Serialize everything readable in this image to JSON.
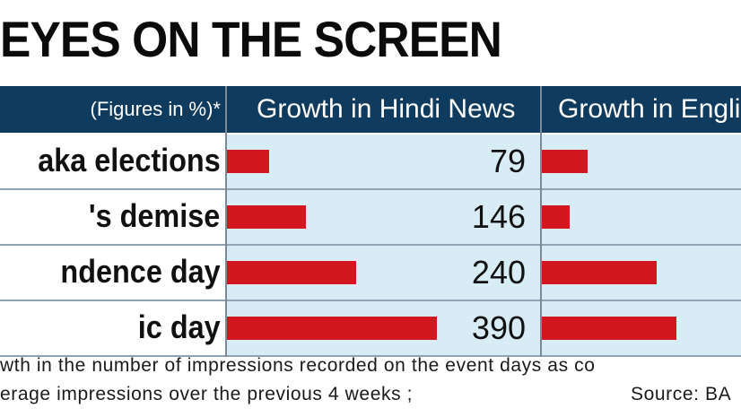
{
  "title": "EYES ON THE SCREEN",
  "footnote": {
    "line1": "wth in the number of impressions recorded on the event days as co",
    "line2": "erage impressions over the previous 4 weeks ;",
    "source": "Source: BA"
  },
  "colors": {
    "header_bg": "#0f3b5f",
    "cell_bg": "#d8ecf6",
    "bar": "#d2171e"
  },
  "chart_data": {
    "type": "bar",
    "title": "EYES ON THE SCREEN",
    "units_note": "(Figures in %)*",
    "columns": [
      "Growth in  Hindi News",
      "Growth in Engli"
    ],
    "categories": [
      "aka elections",
      "'s demise",
      "ndence day",
      "ic day"
    ],
    "series": [
      {
        "name": "Growth in  Hindi News",
        "values": [
          79,
          146,
          240,
          390
        ]
      },
      {
        "name": "Growth in Engli",
        "values": [
          56,
          34,
          140,
          165
        ]
      }
    ],
    "xlim": [
      0,
      500
    ]
  }
}
